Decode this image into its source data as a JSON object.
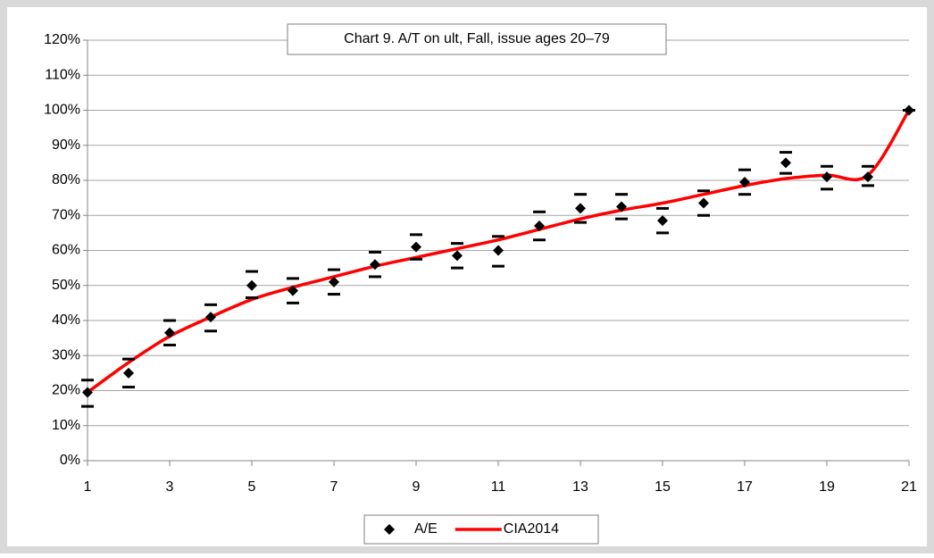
{
  "chart_data": {
    "type": "scatter",
    "title": "Chart 9. A/T on ult, Fall, issue ages 20–79",
    "xlim": [
      1,
      21
    ],
    "xticks": [
      1,
      3,
      5,
      7,
      9,
      11,
      13,
      15,
      17,
      19,
      21
    ],
    "ylim": [
      0,
      120
    ],
    "yticks": [
      {
        "value": 0,
        "label": "0%"
      },
      {
        "value": 10,
        "label": "10%"
      },
      {
        "value": 20,
        "label": "20%"
      },
      {
        "value": 30,
        "label": "30%"
      },
      {
        "value": 40,
        "label": "40%"
      },
      {
        "value": 50,
        "label": "50%"
      },
      {
        "value": 60,
        "label": "60%"
      },
      {
        "value": 70,
        "label": "70%"
      },
      {
        "value": 80,
        "label": "80%"
      },
      {
        "value": 90,
        "label": "90%"
      },
      {
        "value": 100,
        "label": "100%"
      },
      {
        "value": 110,
        "label": "110%"
      },
      {
        "value": 120,
        "label": "120%"
      }
    ],
    "grid": true,
    "legend": "bottom",
    "series": [
      {
        "name": "A/E",
        "type": "scatter",
        "color": "#000000",
        "x": [
          1,
          2,
          3,
          4,
          5,
          6,
          7,
          8,
          9,
          10,
          11,
          12,
          13,
          14,
          15,
          16,
          17,
          18,
          19,
          20,
          21
        ],
        "values": [
          19.5,
          25,
          36.5,
          41,
          50,
          48.5,
          51,
          56,
          61,
          58.5,
          60,
          67,
          72,
          72.5,
          68.5,
          73.5,
          79.5,
          85,
          81,
          81,
          100
        ],
        "upper": [
          23,
          29,
          40,
          44.5,
          54,
          52,
          54.5,
          59.5,
          64.5,
          62,
          64,
          71,
          76,
          76,
          72,
          77,
          83,
          88,
          84,
          84,
          100
        ],
        "lower": [
          15.5,
          21,
          33,
          37,
          46.5,
          45,
          47.5,
          52.5,
          57.5,
          55,
          55.5,
          63,
          68,
          69,
          65,
          70,
          76,
          82,
          77.5,
          78.5,
          100
        ]
      },
      {
        "name": "CIA2014",
        "type": "line",
        "color": "#ff0000",
        "x": [
          1,
          2,
          3,
          4,
          5,
          6,
          7,
          8,
          9,
          10,
          11,
          12,
          13,
          14,
          15,
          16,
          17,
          18,
          19,
          20,
          21
        ],
        "values": [
          19.5,
          28,
          35.5,
          41,
          46,
          49.5,
          52.5,
          55.5,
          58,
          60.5,
          63,
          66,
          69,
          71.5,
          73.5,
          76,
          78.5,
          80.5,
          81.5,
          81.5,
          100
        ]
      }
    ]
  }
}
